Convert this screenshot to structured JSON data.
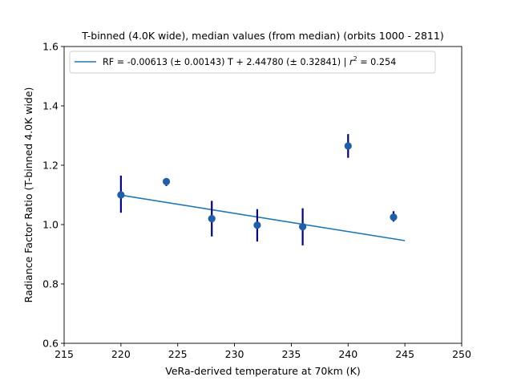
{
  "chart_data": {
    "type": "scatter",
    "title": "T-binned (4.0K wide), median values (from median) (orbits 1000 - 2811)",
    "xlabel": "VeRa-derived temperature at 70km (K)",
    "ylabel": "Radiance Factor Ratio (T-binned 4.0K wide)",
    "xlim": [
      215,
      250
    ],
    "ylim": [
      0.6,
      1.6
    ],
    "xticks": [
      215,
      220,
      225,
      230,
      235,
      240,
      245,
      250
    ],
    "yticks": [
      0.6,
      0.8,
      1.0,
      1.2,
      1.4,
      1.6
    ],
    "xtick_labels": [
      "215",
      "220",
      "225",
      "230",
      "235",
      "240",
      "245",
      "250"
    ],
    "ytick_labels": [
      "0.6",
      "0.8",
      "1.0",
      "1.2",
      "1.4",
      "1.6"
    ],
    "grid": false,
    "legend_position": "top-left",
    "legend": {
      "fit_label_prefix": "RF = -0.00613 (± 0.00143) T + 2.44780 (± 0.32841) | ",
      "r_symbol": "r",
      "r_power": "2",
      "fit_label_suffix": " = 0.254"
    },
    "points": [
      {
        "x": 220,
        "y": 1.1,
        "err_low": 1.04,
        "err_high": 1.165
      },
      {
        "x": 224,
        "y": 1.145,
        "err_low": 1.13,
        "err_high": 1.155
      },
      {
        "x": 228,
        "y": 1.02,
        "err_low": 0.96,
        "err_high": 1.08
      },
      {
        "x": 232,
        "y": 0.998,
        "err_low": 0.943,
        "err_high": 1.052
      },
      {
        "x": 236,
        "y": 0.993,
        "err_low": 0.93,
        "err_high": 1.055
      },
      {
        "x": 240,
        "y": 1.265,
        "err_low": 1.225,
        "err_high": 1.305
      },
      {
        "x": 244,
        "y": 1.025,
        "err_low": 1.01,
        "err_high": 1.045
      }
    ],
    "fit_line": {
      "slope": -0.00613,
      "intercept": 2.4478,
      "x_start": 220,
      "x_end": 245
    },
    "colors": {
      "marker": "#1f5fa8",
      "errorbar": "#00008b",
      "fit": "#1f77b4"
    }
  }
}
